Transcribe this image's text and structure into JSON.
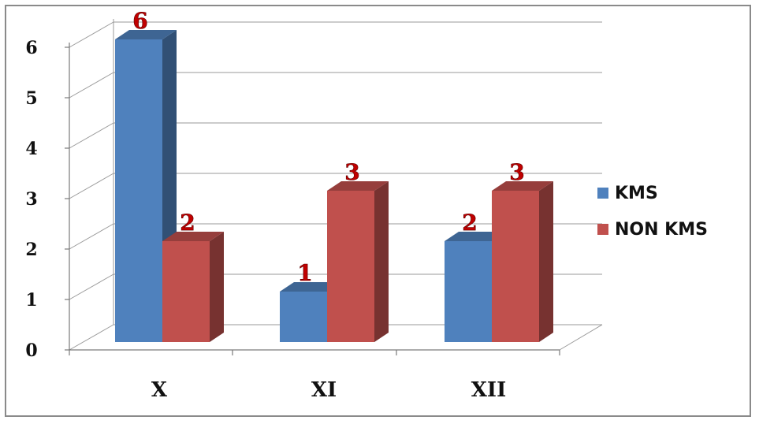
{
  "chart_data": {
    "type": "bar",
    "categories": [
      "X",
      "XI",
      "XII"
    ],
    "series": [
      {
        "name": "KMS",
        "values": [
          6,
          1,
          2
        ],
        "color": "#4F81BD"
      },
      {
        "name": "NON KMS",
        "values": [
          2,
          3,
          3
        ],
        "color": "#C0504D"
      }
    ],
    "yticks": [
      "0",
      "1",
      "2",
      "3",
      "4",
      "5",
      "6"
    ],
    "ylim": [
      0,
      6
    ],
    "grid": true,
    "legend": "right",
    "data_labels": true,
    "style": "3d-clustered-column"
  }
}
